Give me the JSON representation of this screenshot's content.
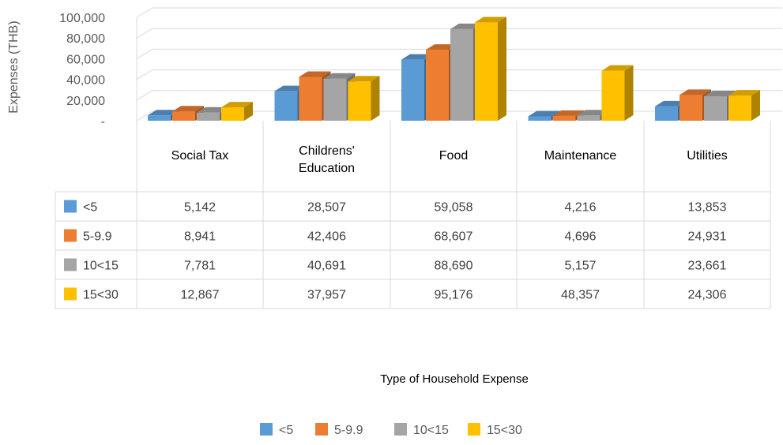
{
  "chart_data": {
    "type": "bar",
    "title": "",
    "xlabel": "Type of Household Expense",
    "ylabel": "Expenses (THB)",
    "ylim": [
      0,
      100000
    ],
    "yticks": [
      {
        "value": 0,
        "label": "-"
      },
      {
        "value": 20000,
        "label": "20,000"
      },
      {
        "value": 40000,
        "label": "40,000"
      },
      {
        "value": 60000,
        "label": "60,000"
      },
      {
        "value": 80000,
        "label": "80,000"
      },
      {
        "value": 100000,
        "label": "100,000"
      }
    ],
    "categories": [
      "Social Tax",
      "Childrens' Education",
      "Food",
      "Maintenance",
      "Utilities"
    ],
    "series": [
      {
        "name": "<5",
        "color": "#5B9BD5",
        "values": [
          5142,
          28507,
          59058,
          4216,
          13853
        ],
        "labels": [
          "5,142",
          "28,507",
          "59,058",
          "4,216",
          "13,853"
        ]
      },
      {
        "name": "5-9.9",
        "color": "#ED7D31",
        "values": [
          8941,
          42406,
          68607,
          4696,
          24931
        ],
        "labels": [
          "8,941",
          "42,406",
          "68,607",
          "4,696",
          "24,931"
        ]
      },
      {
        "name": "10<15",
        "color": "#A5A5A5",
        "values": [
          7781,
          40691,
          88690,
          5157,
          23661
        ],
        "labels": [
          "7,781",
          "40,691",
          "88,690",
          "5,157",
          "23,661"
        ]
      },
      {
        "name": "15<30",
        "color": "#FFC000",
        "values": [
          12867,
          37957,
          95176,
          48357,
          24306
        ],
        "labels": [
          "12,867",
          "37,957",
          "95,176",
          "48,357",
          "24,306"
        ]
      }
    ],
    "grid": true,
    "legend": "bottom",
    "data_table": true
  }
}
